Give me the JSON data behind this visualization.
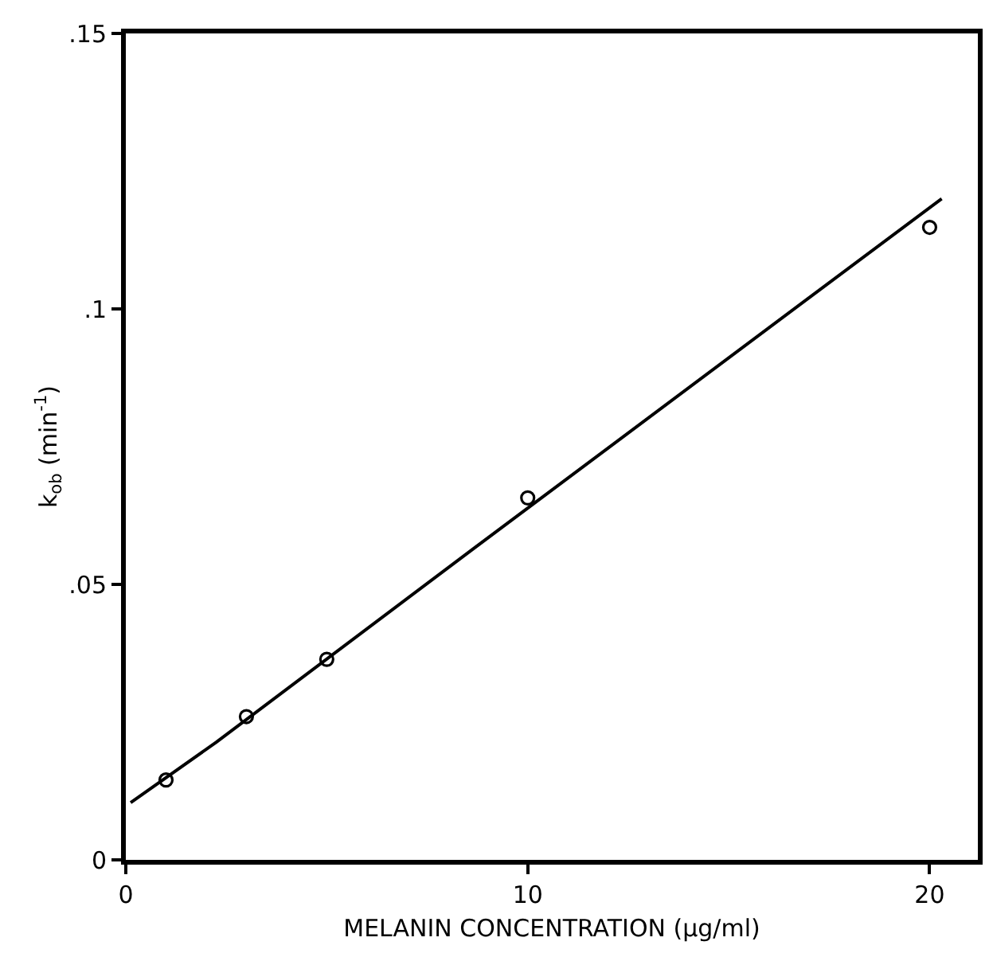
{
  "chart_data": {
    "type": "scatter",
    "xlabel": "MELANIN CONCENTRATION (µg/ml)",
    "ylabel": "k$_{ob}$ (min$^{-1}$)",
    "xlim": [
      0,
      21.2
    ],
    "ylim": [
      0,
      0.15
    ],
    "xticks": [
      0,
      10,
      20
    ],
    "yticks": [
      {
        "value": 0,
        "label": "0"
      },
      {
        "value": 0.05,
        "label": ".05"
      },
      {
        "value": 0.1,
        "label": ".1"
      },
      {
        "value": 0.15,
        "label": ".15"
      }
    ],
    "marker": "circle",
    "series": [
      {
        "color": "#000000",
        "x": [
          1,
          3,
          5,
          10,
          20
        ],
        "values": [
          0.0145,
          0.026,
          0.0364,
          0.0657,
          0.1148
        ]
      },
      {
        "type": "line",
        "color": "#000000",
        "marker": "none",
        "x": [
          0.12,
          2.26,
          8.67,
          20.3
        ],
        "values": [
          0.0104,
          0.0214,
          0.0566,
          0.12
        ]
      }
    ]
  }
}
